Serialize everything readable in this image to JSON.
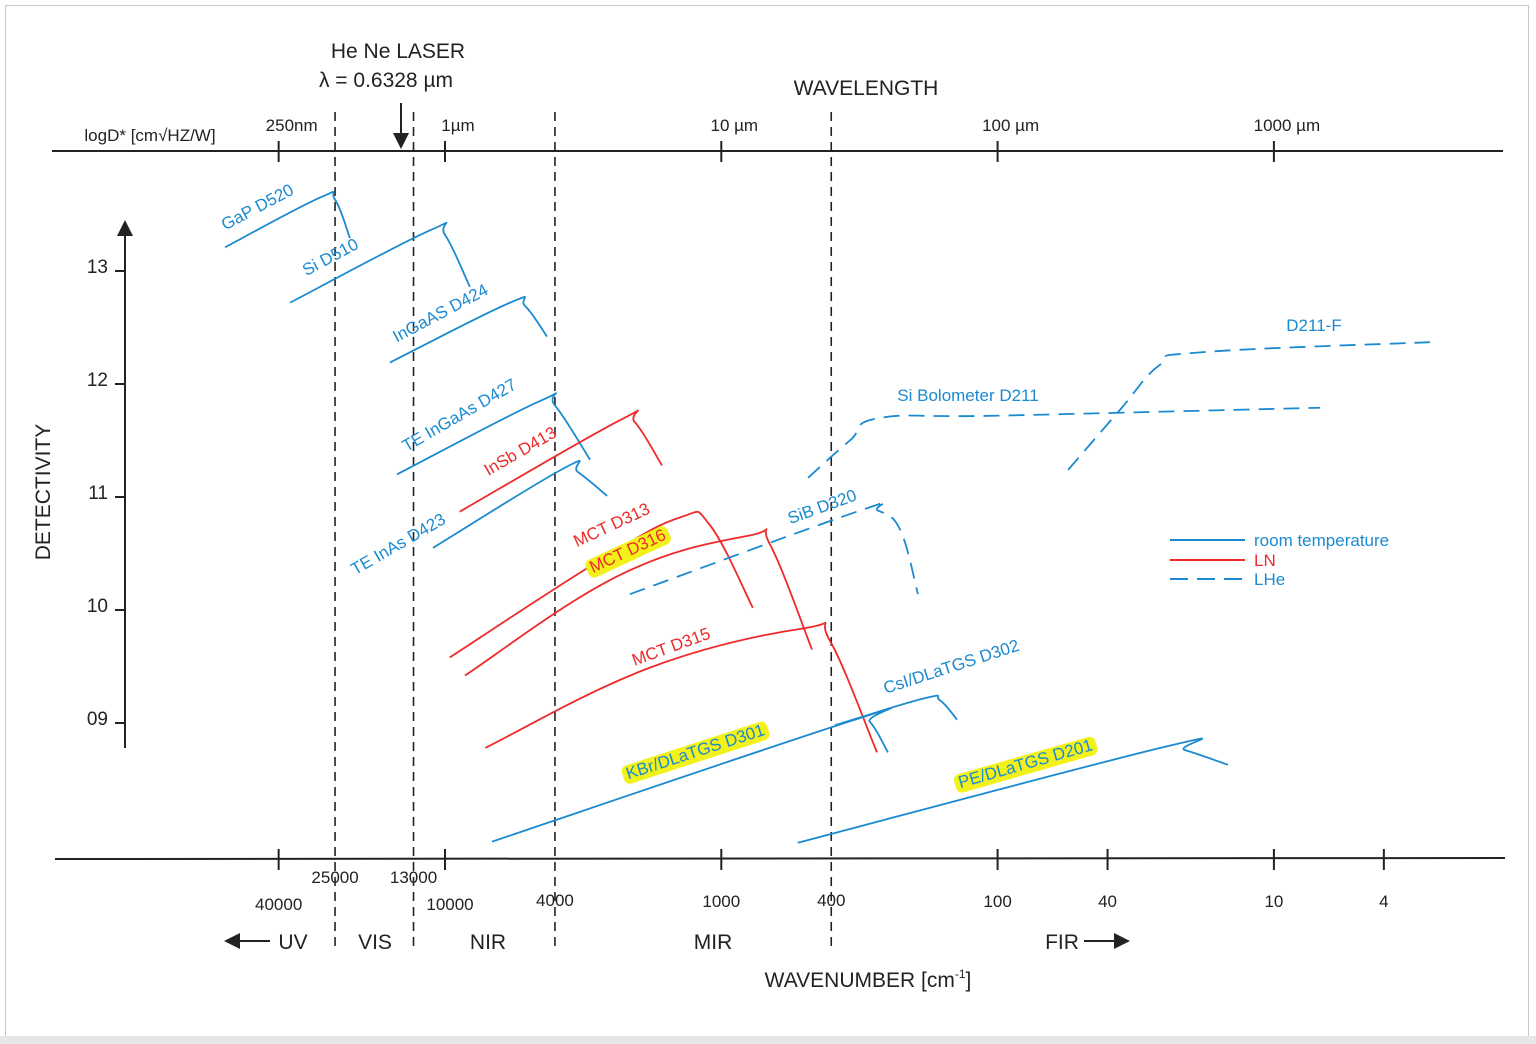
{
  "chart_data": {
    "type": "line",
    "title": "",
    "top_axis": {
      "title": "WAVELENGTH",
      "ylabel_unit": "logD* [cm√HZ/W]",
      "tick_labels": [
        "250nm",
        "1µm",
        "10 µm",
        "100 µm",
        "1000 µm"
      ],
      "tick_values_um": [
        0.25,
        1,
        10,
        100,
        1000
      ],
      "scale": "log"
    },
    "bottom_axis": {
      "title": "WAVENUMBER [cm",
      "title_sup": "-1",
      "title_end": "]",
      "tick_labels": [
        "40000",
        "10000",
        "1000",
        "100",
        "40",
        "10",
        "4"
      ],
      "boundary_labels": [
        "25000",
        "13000",
        "4000",
        "400"
      ],
      "scale": "log"
    },
    "annotation": {
      "laser_title": "He Ne LASER",
      "laser_wavelength": "λ = 0.6328 µm",
      "laser_um": 0.6328
    },
    "regions": [
      {
        "label": "UV",
        "arrow": "left"
      },
      {
        "label": "VIS"
      },
      {
        "label": "NIR"
      },
      {
        "label": "MIR"
      },
      {
        "label": "FIR",
        "arrow": "right"
      }
    ],
    "ylabel": "DETECTIVITY",
    "y_ticks": [
      "13",
      "12",
      "11",
      "10",
      "09"
    ],
    "y_tick_values": [
      13,
      12,
      11,
      10,
      9
    ],
    "ylim": [
      7.8,
      14
    ],
    "grid": false,
    "legend": {
      "placement": "right",
      "entries": [
        {
          "label": "room temperature",
          "color": "#1b8ad0",
          "style": "solid"
        },
        {
          "label": "LN",
          "color": "#ee2a2a",
          "style": "solid"
        },
        {
          "label": "LHe",
          "color": "#1b8ad0",
          "style": "dashed"
        }
      ]
    },
    "highlight_color": "#f2f21a",
    "series": [
      {
        "name": "GaP D520",
        "cooling": "room temperature",
        "x_um": [
          0.16,
          0.353,
          0.4,
          0.453
        ],
        "logD": [
          13.21,
          13.65,
          13.63,
          13.29
        ]
      },
      {
        "name": "Si D510",
        "cooling": "room temperature",
        "x_um": [
          0.275,
          0.883,
          1.0,
          1.23
        ],
        "logD": [
          12.72,
          13.36,
          13.32,
          12.86
        ]
      },
      {
        "name": "InGaAS D424",
        "cooling": "room temperature",
        "x_um": [
          0.632,
          1.72,
          1.95,
          2.34
        ],
        "logD": [
          12.19,
          12.72,
          12.69,
          12.42
        ]
      },
      {
        "name": "TE InGaAs D427",
        "cooling": "room temperature",
        "x_um": [
          0.67,
          2.21,
          2.5,
          3.35
        ],
        "logD": [
          11.2,
          11.85,
          11.81,
          11.33
        ]
      },
      {
        "name": "InSb D413",
        "cooling": "LN",
        "x_um": [
          1.13,
          4.3,
          4.87,
          6.1
        ],
        "logD": [
          10.87,
          11.68,
          11.66,
          11.28
        ]
      },
      {
        "name": "TE InAs D423",
        "cooling": "room temperature",
        "x_um": [
          0.905,
          2.72,
          3.03,
          3.86
        ],
        "logD": [
          10.55,
          11.26,
          11.22,
          11.01
        ]
      },
      {
        "name": "MCT D313",
        "cooling": "LN",
        "x_um": [
          1.04,
          3.64,
          7.1,
          9.1,
          13.0
        ],
        "logD": [
          9.58,
          10.44,
          10.82,
          10.75,
          10.02
        ]
      },
      {
        "name": "MCT D316",
        "cooling": "LN",
        "highlighted": true,
        "x_um": [
          1.18,
          4.3,
          12.7,
          15.0,
          21.3
        ],
        "logD": [
          9.42,
          10.31,
          10.66,
          10.58,
          9.65
        ]
      },
      {
        "name": "MCT D315",
        "cooling": "LN",
        "x_um": [
          1.4,
          5.52,
          20.1,
          24.7,
          36.6
        ],
        "logD": [
          8.78,
          9.49,
          9.84,
          9.73,
          8.74
        ]
      },
      {
        "name": "SiB D320",
        "cooling": "LHe",
        "x_um": [
          4.67,
          31.8,
          36.9,
          44.4,
          51.5
        ],
        "logD": [
          10.14,
          10.88,
          10.88,
          10.71,
          10.14
        ]
      },
      {
        "name": "Si Bolometer D211",
        "cooling": "LHe",
        "x_um": [
          20.6,
          29.2,
          37.5,
          102,
          1469
        ],
        "logD": [
          11.17,
          11.5,
          11.7,
          11.72,
          11.79
        ]
      },
      {
        "name": "D211-F",
        "cooling": "LHe",
        "x_um": [
          180,
          277,
          387,
          541,
          3670
        ],
        "logD": [
          11.24,
          11.77,
          12.17,
          12.28,
          12.37
        ]
      },
      {
        "name": "CsI/DLaTGS D302",
        "cooling": "room temperature",
        "x_um": [
          25.8,
          54.6,
          61.9,
          71.3
        ],
        "logD": [
          8.98,
          9.22,
          9.2,
          9.03
        ]
      },
      {
        "name": "KBr/DLaTGS D301",
        "cooling": "room temperature",
        "highlighted": true,
        "x_um": [
          1.48,
          30.5,
          34.5,
          40.1
        ],
        "logD": [
          7.95,
          9.03,
          9.01,
          8.74
        ]
      },
      {
        "name": "PE/DLaTGS D201",
        "cooling": "room temperature",
        "highlighted": true,
        "x_um": [
          18.9,
          404,
          477,
          682
        ],
        "logD": [
          7.94,
          8.79,
          8.76,
          8.63
        ]
      }
    ]
  }
}
